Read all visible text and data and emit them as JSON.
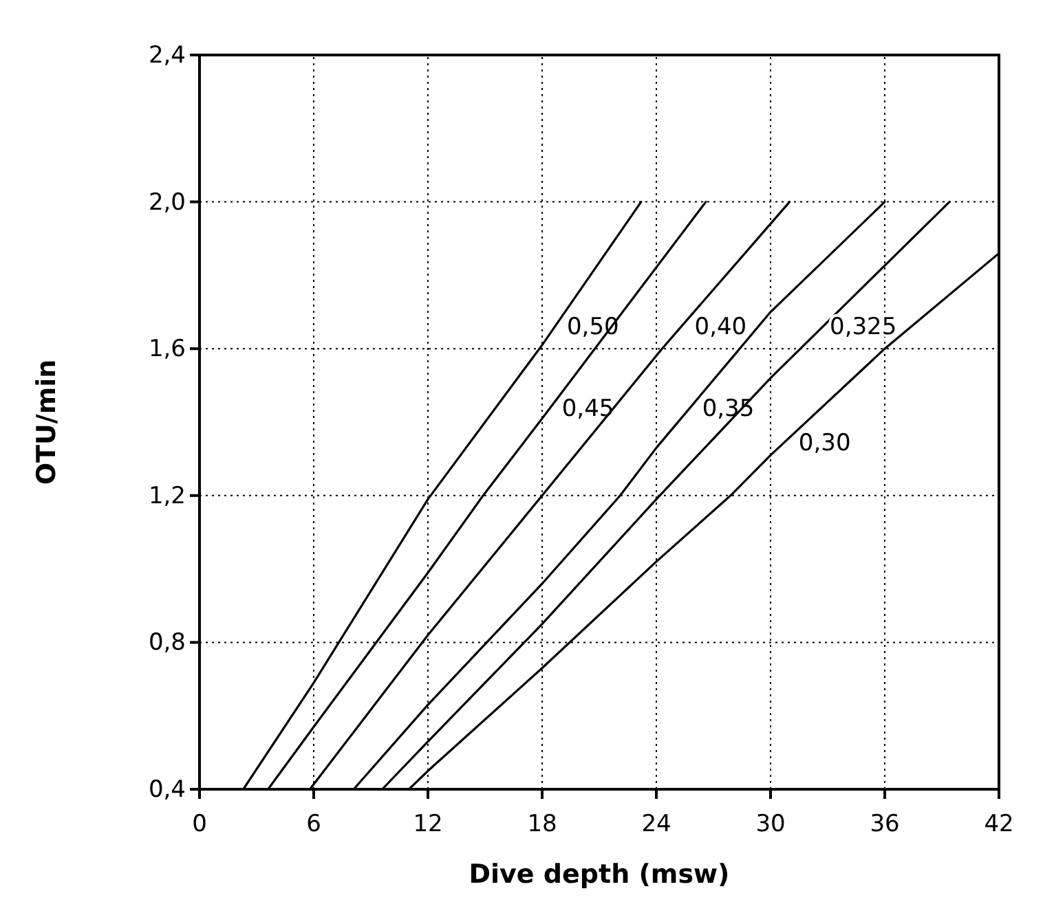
{
  "chart_data": {
    "type": "line",
    "xlabel": "Dive depth (msw)",
    "ylabel": "OTU/min",
    "xlim": [
      0,
      42
    ],
    "xticks": [
      0,
      6,
      12,
      18,
      24,
      30,
      36,
      42
    ],
    "ylim": [
      0.4,
      2.4
    ],
    "yticks": [
      {
        "value": 0.4,
        "label": "0,4"
      },
      {
        "value": 0.8,
        "label": "0,8"
      },
      {
        "value": 1.2,
        "label": "1,2"
      },
      {
        "value": 1.6,
        "label": "1,6"
      },
      {
        "value": 2.0,
        "label": "2,0"
      },
      {
        "value": 2.4,
        "label": "2,4"
      }
    ],
    "grid": true,
    "line_style": "solid",
    "marker": "none",
    "series": [
      {
        "name": "0,50",
        "color": "#000000",
        "x": [
          2.3,
          6,
          12,
          18,
          23.2
        ],
        "values": [
          0.4,
          0.69,
          1.19,
          1.61,
          2.0
        ]
      },
      {
        "name": "0,45",
        "color": "#000000",
        "x": [
          3.6,
          6,
          12,
          14.9,
          18,
          26.6
        ],
        "values": [
          0.4,
          0.57,
          0.99,
          1.2,
          1.41,
          2.0
        ]
      },
      {
        "name": "0,40",
        "color": "#000000",
        "x": [
          5.8,
          12,
          18,
          24.3,
          31.0
        ],
        "values": [
          0.4,
          0.82,
          1.2,
          1.6,
          2.0
        ]
      },
      {
        "name": "0,35",
        "color": "#000000",
        "x": [
          8.1,
          12,
          18,
          22.1,
          24,
          30,
          36.0
        ],
        "values": [
          0.4,
          0.63,
          0.96,
          1.2,
          1.33,
          1.7,
          2.0
        ]
      },
      {
        "name": "0,325",
        "color": "#000000",
        "x": [
          9.6,
          12,
          18,
          24,
          30,
          39.4
        ],
        "values": [
          0.4,
          0.53,
          0.85,
          1.19,
          1.52,
          2.0
        ]
      },
      {
        "name": "0,30",
        "color": "#000000",
        "x": [
          11,
          12,
          18,
          24,
          27.9,
          30,
          36,
          42
        ],
        "values": [
          0.4,
          0.45,
          0.73,
          1.02,
          1.2,
          1.31,
          1.6,
          1.86
        ]
      }
    ]
  }
}
